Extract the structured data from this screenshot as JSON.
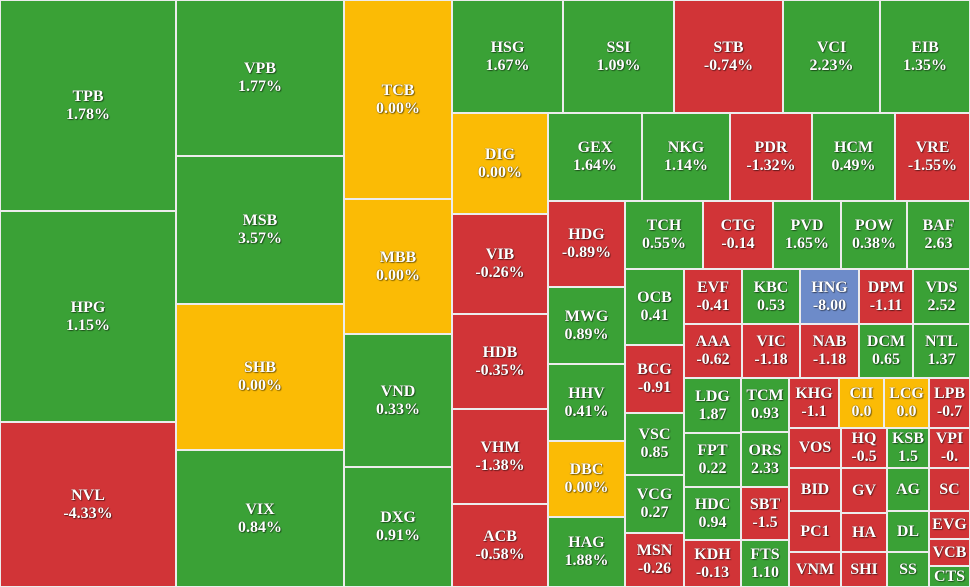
{
  "chart_data": {
    "type": "heatmap",
    "colors": {
      "green": "#3aa136",
      "red": "#d13437",
      "yellow": "#fbbb05",
      "blue": "#6d8bc9"
    },
    "cells": [
      {
        "ticker": "TPB",
        "change": "1.78%",
        "color": "green"
      },
      {
        "ticker": "HPG",
        "change": "1.15%",
        "color": "green"
      },
      {
        "ticker": "NVL",
        "change": "-4.33%",
        "color": "red"
      },
      {
        "ticker": "VPB",
        "change": "1.77%",
        "color": "green"
      },
      {
        "ticker": "MSB",
        "change": "3.57%",
        "color": "green"
      },
      {
        "ticker": "SHB",
        "change": "0.00%",
        "color": "yellow"
      },
      {
        "ticker": "VIX",
        "change": "0.84%",
        "color": "green"
      },
      {
        "ticker": "TCB",
        "change": "0.00%",
        "color": "yellow"
      },
      {
        "ticker": "MBB",
        "change": "0.00%",
        "color": "yellow"
      },
      {
        "ticker": "VND",
        "change": "0.33%",
        "color": "green"
      },
      {
        "ticker": "DXG",
        "change": "0.91%",
        "color": "green"
      },
      {
        "ticker": "HSG",
        "change": "1.67%",
        "color": "green"
      },
      {
        "ticker": "SSI",
        "change": "1.09%",
        "color": "green"
      },
      {
        "ticker": "STB",
        "change": "-0.74%",
        "color": "red"
      },
      {
        "ticker": "VCI",
        "change": "2.23%",
        "color": "green"
      },
      {
        "ticker": "EIB",
        "change": "1.35%",
        "color": "green"
      },
      {
        "ticker": "DIG",
        "change": "0.00%",
        "color": "yellow"
      },
      {
        "ticker": "VIB",
        "change": "-0.26%",
        "color": "red"
      },
      {
        "ticker": "HDB",
        "change": "-0.35%",
        "color": "red"
      },
      {
        "ticker": "VHM",
        "change": "-1.38%",
        "color": "red"
      },
      {
        "ticker": "ACB",
        "change": "-0.58%",
        "color": "red"
      },
      {
        "ticker": "GEX",
        "change": "1.64%",
        "color": "green"
      },
      {
        "ticker": "NKG",
        "change": "1.14%",
        "color": "green"
      },
      {
        "ticker": "PDR",
        "change": "-1.32%",
        "color": "red"
      },
      {
        "ticker": "HCM",
        "change": "0.49%",
        "color": "green"
      },
      {
        "ticker": "VRE",
        "change": "-1.55%",
        "color": "red"
      },
      {
        "ticker": "HDG",
        "change": "-0.89%",
        "color": "red"
      },
      {
        "ticker": "MWG",
        "change": "0.89%",
        "color": "green"
      },
      {
        "ticker": "HHV",
        "change": "0.41%",
        "color": "green"
      },
      {
        "ticker": "DBC",
        "change": "0.00%",
        "color": "yellow"
      },
      {
        "ticker": "HAG",
        "change": "1.88%",
        "color": "green"
      },
      {
        "ticker": "TCH",
        "change": "0.55%",
        "color": "green"
      },
      {
        "ticker": "CTG",
        "change": "-0.14",
        "color": "red"
      },
      {
        "ticker": "PVD",
        "change": "1.65%",
        "color": "green"
      },
      {
        "ticker": "POW",
        "change": "0.38%",
        "color": "green"
      },
      {
        "ticker": "BAF",
        "change": "2.63",
        "color": "green"
      },
      {
        "ticker": "OCB",
        "change": "0.41",
        "color": "green"
      },
      {
        "ticker": "BCG",
        "change": "-0.91",
        "color": "red"
      },
      {
        "ticker": "VSC",
        "change": "0.85",
        "color": "green"
      },
      {
        "ticker": "VCG",
        "change": "0.27",
        "color": "green"
      },
      {
        "ticker": "MSN",
        "change": "-0.26",
        "color": "red"
      },
      {
        "ticker": "EVF",
        "change": "-0.41",
        "color": "red"
      },
      {
        "ticker": "KBC",
        "change": "0.53",
        "color": "green"
      },
      {
        "ticker": "HNG",
        "change": "-8.00",
        "color": "blue"
      },
      {
        "ticker": "DPM",
        "change": "-1.11",
        "color": "red"
      },
      {
        "ticker": "VDS",
        "change": "2.52",
        "color": "green"
      },
      {
        "ticker": "AAA",
        "change": "-0.62",
        "color": "red"
      },
      {
        "ticker": "VIC",
        "change": "-1.18",
        "color": "red"
      },
      {
        "ticker": "NAB",
        "change": "-1.18",
        "color": "red"
      },
      {
        "ticker": "DCM",
        "change": "0.65",
        "color": "green"
      },
      {
        "ticker": "NTL",
        "change": "1.37",
        "color": "green"
      },
      {
        "ticker": "LDG",
        "change": "1.87",
        "color": "green"
      },
      {
        "ticker": "FPT",
        "change": "0.22",
        "color": "green"
      },
      {
        "ticker": "HDC",
        "change": "0.94",
        "color": "green"
      },
      {
        "ticker": "KDH",
        "change": "-0.13",
        "color": "red"
      },
      {
        "ticker": "TCM",
        "change": "0.93",
        "color": "green"
      },
      {
        "ticker": "ORS",
        "change": "2.33",
        "color": "green"
      },
      {
        "ticker": "SBT",
        "change": "-1.5",
        "color": "red"
      },
      {
        "ticker": "FTS",
        "change": "1.10",
        "color": "green"
      },
      {
        "ticker": "KHG",
        "change": "-1.1",
        "color": "red"
      },
      {
        "ticker": "CII",
        "change": "0.0",
        "color": "yellow"
      },
      {
        "ticker": "LCG",
        "change": "0.0",
        "color": "yellow"
      },
      {
        "ticker": "LPB",
        "change": "-0.7",
        "color": "red"
      },
      {
        "ticker": "VOS",
        "color": "red"
      },
      {
        "ticker": "BID",
        "color": "red"
      },
      {
        "ticker": "PC1",
        "color": "red"
      },
      {
        "ticker": "VNM",
        "color": "red"
      },
      {
        "ticker": "HQ",
        "change": "-0.5",
        "color": "red"
      },
      {
        "ticker": "GV",
        "color": "red"
      },
      {
        "ticker": "HA",
        "color": "red"
      },
      {
        "ticker": "SHI",
        "color": "red"
      },
      {
        "ticker": "KSB",
        "change": "1.5",
        "color": "green"
      },
      {
        "ticker": "AG",
        "color": "green"
      },
      {
        "ticker": "DL",
        "color": "green"
      },
      {
        "ticker": "SS",
        "color": "green"
      },
      {
        "ticker": "VPI",
        "change": "-0.",
        "color": "red"
      },
      {
        "ticker": "SC",
        "color": "red"
      },
      {
        "ticker": "EVG",
        "color": "red"
      },
      {
        "ticker": "VCB",
        "color": "red"
      },
      {
        "ticker": "CTS",
        "color": "green"
      }
    ]
  }
}
